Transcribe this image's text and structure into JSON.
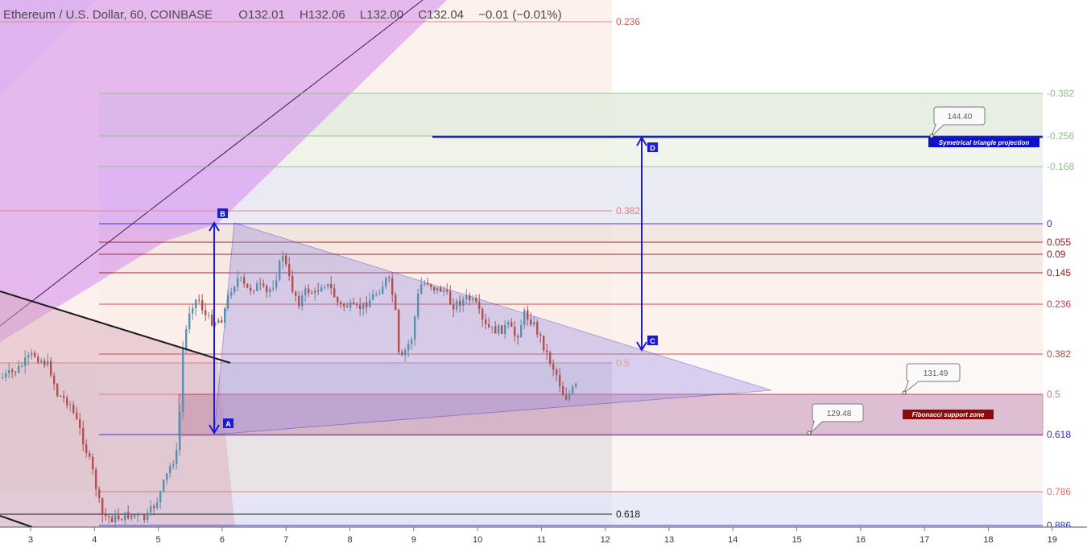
{
  "header": {
    "title": "Ethereum / U.S. Dollar, 60, COINBASE",
    "open": "O132.01",
    "high": "H132.06",
    "low": "L132.00",
    "close": "C132.04",
    "change": "−0.01 (−0.01%)"
  },
  "chart_data": {
    "type": "candlestick",
    "instrument": "Ethereum / U.S. Dollar",
    "interval": "60",
    "exchange": "COINBASE",
    "x_ticks": [
      "3",
      "4",
      "5",
      "6",
      "7",
      "8",
      "9",
      "10",
      "11",
      "12",
      "13",
      "14",
      "15",
      "16",
      "17",
      "18",
      "19"
    ],
    "fib_right": {
      "levels": [
        "-0.382",
        "-0.256",
        "-0.168",
        "0",
        "0.055",
        "0.09",
        "0.145",
        "0.236",
        "0.382",
        "0.5",
        "0.618",
        "0.786",
        "0.886"
      ],
      "colors": [
        "#8fbf8f",
        "#8fbf8f",
        "#8fbf8f",
        "#2a2ad8",
        "#8b1a1a",
        "#8b1a1a",
        "#8b1a1a",
        "#c04040",
        "#c04040",
        "#e07070",
        "#2a2ad8",
        "#e07070",
        "#2a2ad8"
      ]
    },
    "fib_inner": {
      "levels": [
        "0.236",
        "0.382",
        "0.5",
        "0.618"
      ]
    },
    "points": {
      "A": "A",
      "B": "B",
      "C": "C",
      "D": "D"
    },
    "annotations": [
      {
        "label": "144.40"
      },
      {
        "label": "131.49"
      },
      {
        "label": "129.48"
      },
      {
        "label": "Symetrical triangle projection",
        "bg": "#1010c8"
      },
      {
        "label": "Fibonacci support zone",
        "bg": "#8b0a0a"
      }
    ],
    "colors": {
      "up": "#5a8fb0",
      "down": "#b05050",
      "pattern": "#2020c0",
      "channel": "#b060e8"
    }
  }
}
